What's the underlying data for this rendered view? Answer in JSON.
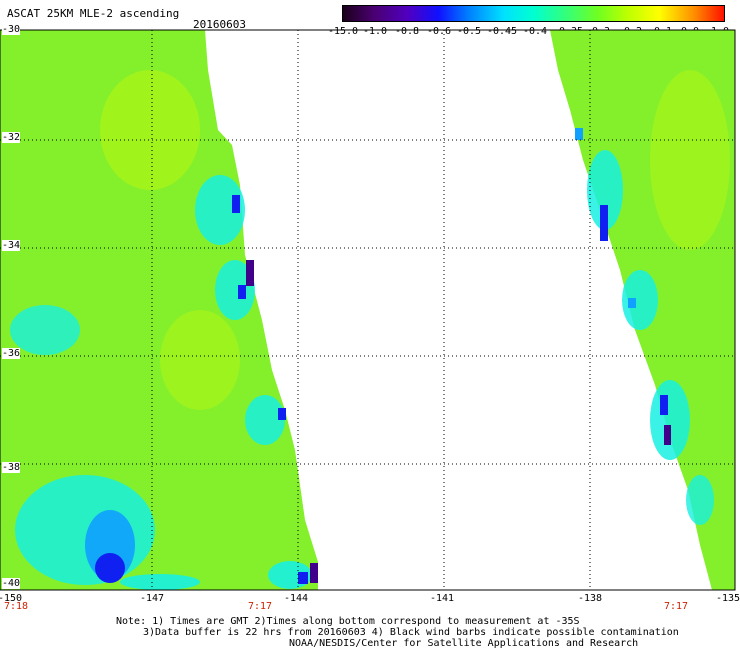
{
  "header": {
    "title": "ASCAT 25KM MLE-2 ascending",
    "date": "20160603"
  },
  "colorbar": {
    "labels": [
      "-15.0",
      "-1.0",
      "-0.8",
      "-0.6",
      "-0.5",
      "-0.45",
      "-0.4",
      "-0.35",
      "-0.3",
      "-0.2",
      "-0.1",
      "0.0",
      "1.0"
    ],
    "colors": [
      "#2a0030",
      "#5a0090",
      "#2020ff",
      "#0090ff",
      "#00d8ff",
      "#00ffe0",
      "#30ff90",
      "#60ff30",
      "#a0ff00",
      "#ffff00",
      "#ffb000",
      "#ff5000",
      "#ff0000"
    ]
  },
  "map": {
    "lat_labels": [
      "-30",
      "-32",
      "-34",
      "-36",
      "-38",
      "-40"
    ],
    "lon_labels": [
      "-150",
      "-147",
      "-144",
      "-141",
      "-138",
      "-135"
    ],
    "time_labels": [
      "7:18",
      "7:17",
      "7:17"
    ],
    "swath_colors": {
      "base": "#84f02c",
      "light": "#a8f418",
      "cyan": "#18f0e0",
      "blue": "#10a0ff",
      "deep_blue": "#1020f0",
      "purple": "#40008a"
    }
  },
  "note": {
    "line1": "Note: 1) Times are GMT 2)Times along bottom correspond to measurement at -35S",
    "line2": "3)Data buffer is 22 hrs from 20160603 4) Black wind barbs indicate possible contamination",
    "line3": "NOAA/NESDIS/Center for Satellite Applications and Research"
  }
}
